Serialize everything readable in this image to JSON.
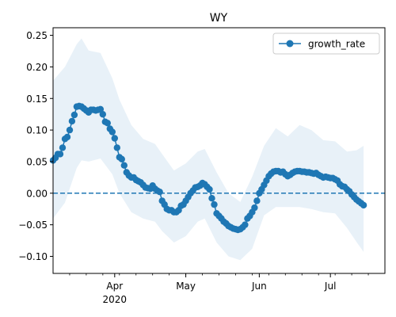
{
  "chart_data": {
    "type": "line",
    "title": "WY",
    "xlabel": "",
    "ylabel": "",
    "x_range": [
      "2020-03-06",
      "2020-07-24"
    ],
    "ylim": [
      -0.127,
      0.262
    ],
    "y_ticks": [
      -0.1,
      -0.05,
      0.0,
      0.05,
      0.1,
      0.15,
      0.2,
      0.25
    ],
    "y_tick_labels": [
      "−0.10",
      "−0.05",
      "0.00",
      "0.05",
      "0.10",
      "0.15",
      "0.20",
      "0.25"
    ],
    "x_ticks": [
      {
        "date": "2020-04-01",
        "label": "Apr",
        "sublabel": "2020"
      },
      {
        "date": "2020-05-01",
        "label": "May",
        "sublabel": ""
      },
      {
        "date": "2020-06-01",
        "label": "Jun",
        "sublabel": ""
      },
      {
        "date": "2020-07-01",
        "label": "Jul",
        "sublabel": ""
      }
    ],
    "grid": false,
    "legend": {
      "position": "top-right",
      "entries": [
        "growth_rate"
      ]
    },
    "reference_line": {
      "y": 0.0,
      "style": "dashed",
      "color": "#1f77b4"
    },
    "colors": {
      "series": "#1f77b4",
      "band": "#dce9f5"
    },
    "series": [
      {
        "name": "growth_rate",
        "points": [
          [
            "2020-03-06",
            0.052
          ],
          [
            "2020-03-07",
            0.056
          ],
          [
            "2020-03-08",
            0.062
          ],
          [
            "2020-03-09",
            0.062
          ],
          [
            "2020-03-10",
            0.072
          ],
          [
            "2020-03-11",
            0.086
          ],
          [
            "2020-03-12",
            0.089
          ],
          [
            "2020-03-13",
            0.1
          ],
          [
            "2020-03-14",
            0.114
          ],
          [
            "2020-03-15",
            0.124
          ],
          [
            "2020-03-16",
            0.137
          ],
          [
            "2020-03-17",
            0.138
          ],
          [
            "2020-03-18",
            0.137
          ],
          [
            "2020-03-19",
            0.134
          ],
          [
            "2020-03-20",
            0.131
          ],
          [
            "2020-03-21",
            0.128
          ],
          [
            "2020-03-22",
            0.132
          ],
          [
            "2020-03-23",
            0.132
          ],
          [
            "2020-03-24",
            0.131
          ],
          [
            "2020-03-25",
            0.132
          ],
          [
            "2020-03-26",
            0.133
          ],
          [
            "2020-03-27",
            0.125
          ],
          [
            "2020-03-28",
            0.113
          ],
          [
            "2020-03-29",
            0.111
          ],
          [
            "2020-03-30",
            0.102
          ],
          [
            "2020-03-31",
            0.097
          ],
          [
            "2020-04-01",
            0.087
          ],
          [
            "2020-04-02",
            0.072
          ],
          [
            "2020-04-03",
            0.057
          ],
          [
            "2020-04-04",
            0.054
          ],
          [
            "2020-04-05",
            0.044
          ],
          [
            "2020-04-06",
            0.033
          ],
          [
            "2020-04-07",
            0.028
          ],
          [
            "2020-04-08",
            0.025
          ],
          [
            "2020-04-09",
            0.025
          ],
          [
            "2020-04-10",
            0.021
          ],
          [
            "2020-04-11",
            0.019
          ],
          [
            "2020-04-12",
            0.017
          ],
          [
            "2020-04-13",
            0.013
          ],
          [
            "2020-04-14",
            0.009
          ],
          [
            "2020-04-15",
            0.008
          ],
          [
            "2020-04-16",
            0.007
          ],
          [
            "2020-04-17",
            0.012
          ],
          [
            "2020-04-18",
            0.007
          ],
          [
            "2020-04-19",
            0.004
          ],
          [
            "2020-04-20",
            0.002
          ],
          [
            "2020-04-21",
            -0.012
          ],
          [
            "2020-04-22",
            -0.018
          ],
          [
            "2020-04-23",
            -0.025
          ],
          [
            "2020-04-24",
            -0.027
          ],
          [
            "2020-04-25",
            -0.027
          ],
          [
            "2020-04-26",
            -0.03
          ],
          [
            "2020-04-27",
            -0.03
          ],
          [
            "2020-04-28",
            -0.027
          ],
          [
            "2020-04-29",
            -0.02
          ],
          [
            "2020-04-30",
            -0.018
          ],
          [
            "2020-05-01",
            -0.012
          ],
          [
            "2020-05-02",
            -0.006
          ],
          [
            "2020-05-03",
            0.0
          ],
          [
            "2020-05-04",
            0.004
          ],
          [
            "2020-05-05",
            0.009
          ],
          [
            "2020-05-06",
            0.01
          ],
          [
            "2020-05-07",
            0.012
          ],
          [
            "2020-05-08",
            0.016
          ],
          [
            "2020-05-09",
            0.014
          ],
          [
            "2020-05-10",
            0.01
          ],
          [
            "2020-05-11",
            0.006
          ],
          [
            "2020-05-12",
            -0.008
          ],
          [
            "2020-05-13",
            -0.018
          ],
          [
            "2020-05-14",
            -0.032
          ],
          [
            "2020-05-15",
            -0.036
          ],
          [
            "2020-05-16",
            -0.04
          ],
          [
            "2020-05-17",
            -0.045
          ],
          [
            "2020-05-18",
            -0.048
          ],
          [
            "2020-05-19",
            -0.052
          ],
          [
            "2020-05-20",
            -0.054
          ],
          [
            "2020-05-21",
            -0.056
          ],
          [
            "2020-05-22",
            -0.057
          ],
          [
            "2020-05-23",
            -0.058
          ],
          [
            "2020-05-24",
            -0.057
          ],
          [
            "2020-05-25",
            -0.054
          ],
          [
            "2020-05-26",
            -0.05
          ],
          [
            "2020-05-27",
            -0.04
          ],
          [
            "2020-05-28",
            -0.036
          ],
          [
            "2020-05-29",
            -0.03
          ],
          [
            "2020-05-30",
            -0.023
          ],
          [
            "2020-05-31",
            -0.012
          ],
          [
            "2020-06-01",
            0.0
          ],
          [
            "2020-06-02",
            0.006
          ],
          [
            "2020-06-03",
            0.013
          ],
          [
            "2020-06-04",
            0.02
          ],
          [
            "2020-06-05",
            0.027
          ],
          [
            "2020-06-06",
            0.031
          ],
          [
            "2020-06-07",
            0.034
          ],
          [
            "2020-06-08",
            0.035
          ],
          [
            "2020-06-09",
            0.035
          ],
          [
            "2020-06-10",
            0.033
          ],
          [
            "2020-06-11",
            0.034
          ],
          [
            "2020-06-12",
            0.03
          ],
          [
            "2020-06-13",
            0.027
          ],
          [
            "2020-06-14",
            0.029
          ],
          [
            "2020-06-15",
            0.032
          ],
          [
            "2020-06-16",
            0.034
          ],
          [
            "2020-06-17",
            0.035
          ],
          [
            "2020-06-18",
            0.035
          ],
          [
            "2020-06-19",
            0.034
          ],
          [
            "2020-06-20",
            0.034
          ],
          [
            "2020-06-21",
            0.033
          ],
          [
            "2020-06-22",
            0.033
          ],
          [
            "2020-06-23",
            0.032
          ],
          [
            "2020-06-24",
            0.031
          ],
          [
            "2020-06-25",
            0.032
          ],
          [
            "2020-06-26",
            0.029
          ],
          [
            "2020-06-27",
            0.027
          ],
          [
            "2020-06-28",
            0.025
          ],
          [
            "2020-06-29",
            0.026
          ],
          [
            "2020-06-30",
            0.025
          ],
          [
            "2020-07-01",
            0.024
          ],
          [
            "2020-07-02",
            0.024
          ],
          [
            "2020-07-03",
            0.022
          ],
          [
            "2020-07-04",
            0.02
          ],
          [
            "2020-07-05",
            0.014
          ],
          [
            "2020-07-06",
            0.011
          ],
          [
            "2020-07-07",
            0.01
          ],
          [
            "2020-07-08",
            0.006
          ],
          [
            "2020-07-09",
            0.003
          ],
          [
            "2020-07-10",
            -0.002
          ],
          [
            "2020-07-11",
            -0.006
          ],
          [
            "2020-07-12",
            -0.01
          ],
          [
            "2020-07-13",
            -0.013
          ],
          [
            "2020-07-14",
            -0.016
          ],
          [
            "2020-07-15",
            -0.019
          ]
        ],
        "band": [
          [
            "2020-03-06",
            -0.04,
            0.178
          ],
          [
            "2020-03-11",
            -0.015,
            0.2
          ],
          [
            "2020-03-16",
            0.04,
            0.236
          ],
          [
            "2020-03-18",
            0.052,
            0.245
          ],
          [
            "2020-03-21",
            0.05,
            0.226
          ],
          [
            "2020-03-26",
            0.055,
            0.222
          ],
          [
            "2020-03-31",
            0.03,
            0.182
          ],
          [
            "2020-04-03",
            0.0,
            0.148
          ],
          [
            "2020-04-08",
            -0.03,
            0.108
          ],
          [
            "2020-04-13",
            -0.04,
            0.086
          ],
          [
            "2020-04-18",
            -0.045,
            0.078
          ],
          [
            "2020-04-21",
            -0.06,
            0.062
          ],
          [
            "2020-04-26",
            -0.078,
            0.036
          ],
          [
            "2020-05-01",
            -0.068,
            0.047
          ],
          [
            "2020-05-06",
            -0.045,
            0.066
          ],
          [
            "2020-05-09",
            -0.04,
            0.07
          ],
          [
            "2020-05-14",
            -0.078,
            0.033
          ],
          [
            "2020-05-19",
            -0.1,
            0.0
          ],
          [
            "2020-05-24",
            -0.106,
            -0.014
          ],
          [
            "2020-05-29",
            -0.088,
            0.026
          ],
          [
            "2020-06-03",
            -0.035,
            0.075
          ],
          [
            "2020-06-08",
            -0.022,
            0.103
          ],
          [
            "2020-06-13",
            -0.022,
            0.09
          ],
          [
            "2020-06-18",
            -0.022,
            0.108
          ],
          [
            "2020-06-23",
            -0.025,
            0.1
          ],
          [
            "2020-06-28",
            -0.03,
            0.084
          ],
          [
            "2020-07-03",
            -0.032,
            0.082
          ],
          [
            "2020-07-08",
            -0.055,
            0.066
          ],
          [
            "2020-07-12",
            -0.077,
            0.068
          ],
          [
            "2020-07-15",
            -0.093,
            0.075
          ]
        ]
      }
    ]
  }
}
